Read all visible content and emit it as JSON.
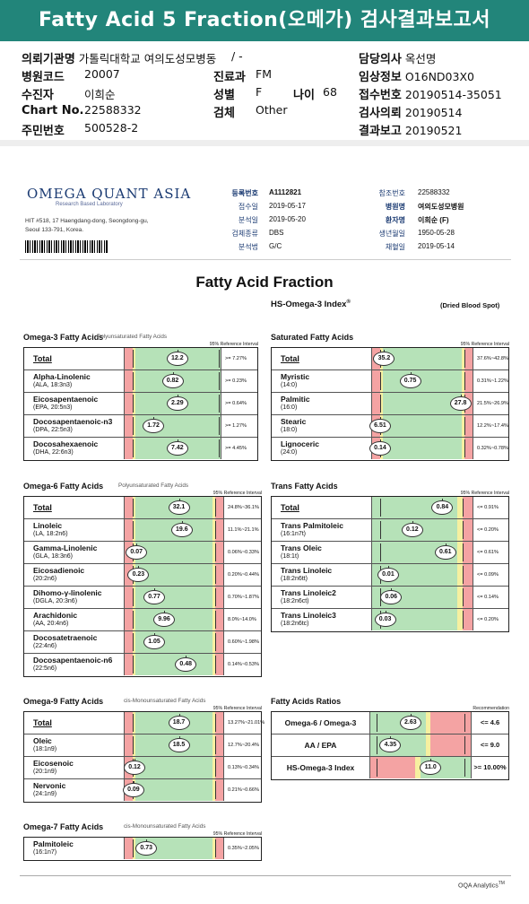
{
  "title": "Fatty Acid 5 Fraction(오메가) 검사결과보고서",
  "info": {
    "institution_label": "의뢰기관명",
    "institution_value": "가톨릭대학교 여의도성모병동",
    "physician_label": "담당의사",
    "physician_value": "옥선명",
    "dash": "/  -",
    "hospital_code_label": "병원코드",
    "hospital_code_value": "20007",
    "dept_label": "진료과",
    "dept_value": "FM",
    "clinical_label": "임상정보",
    "clinical_value": "O16ND03X0",
    "examinee_label": "수진자",
    "examinee_value": "이희순",
    "sex_label": "성별",
    "sex_value": "F",
    "age_label": "나이",
    "age_value": "68",
    "receipt_label": "접수번호",
    "receipt_value": "20190514-35051",
    "chart_label": "Chart No.",
    "chart_value": "22588332",
    "test_label": "검체",
    "test_value": "Other",
    "request_label": "검사의뢰",
    "request_value": "20190514",
    "rrn_label": "주민번호",
    "rrn_value": "500528-2",
    "report_label": "결과보고",
    "report_value": "20190521"
  },
  "lab": {
    "logo": "OMEGA QUANT ASIA",
    "logo_sub": "Research Based Laboratory",
    "addr1": "HIT #518, 17 Haengdang-dong, Seongdong-gu,",
    "addr2": "Seoul 133-791, Korea."
  },
  "meta": {
    "reg_label": "등록번호",
    "reg_value": "A1112821",
    "ref_label": "참조번호",
    "ref_value": "22588332",
    "recv_label": "접수일",
    "recv_value": "2019-05-17",
    "hosp_label": "병원명",
    "hosp_value": "여의도성모병원",
    "analysis_label": "분석일",
    "analysis_value": "2019-05-20",
    "patient_label": "환자명",
    "patient_value": "이희순 (F)",
    "sample_label": "검체종류",
    "sample_value": "DBS",
    "dob_label": "생년월일",
    "dob_value": "1950-05-28",
    "method_label": "분석법",
    "method_value": "G/C",
    "collect_label": "채혈일",
    "collect_value": "2019-05-14"
  },
  "main_title": "Fatty Acid Fraction",
  "hs_title": "HS-Omega-3 Index",
  "hs_sup": "®",
  "dbs_note": "(Dried Blood Spot)",
  "ref_interval_label": "95% Reference Interval",
  "recommendation_label": "Recommendation",
  "colors": {
    "red": "#f4a3a3",
    "green": "#b6e2b8",
    "yellow": "#f6f0a0"
  },
  "sections": {
    "omega3": {
      "title": "Omega-3 Fatty Acids",
      "subtitle": "Polyunsaturated Fatty Acids",
      "rows": [
        {
          "name": "Total",
          "sub": "",
          "value": "12.2",
          "ref": ">= 7.27%",
          "pos": 0.55,
          "total": true
        },
        {
          "name": "Alpha-Linolenic",
          "sub": "(ALA, 18:3n3)",
          "value": "0.82",
          "ref": ">= 0.23%",
          "pos": 0.5
        },
        {
          "name": "Eicosapentaenoic",
          "sub": "(EPA, 20:5n3)",
          "value": "2.29",
          "ref": ">= 0.64%",
          "pos": 0.55
        },
        {
          "name": "Docosapentaenoic-n3",
          "sub": "(DPA, 22:5n3)",
          "value": "1.72",
          "ref": ">= 1.27%",
          "pos": 0.3
        },
        {
          "name": "Docosahexaenoic",
          "sub": "(DHA, 22:6n3)",
          "value": "7.42",
          "ref": ">= 4.45%",
          "pos": 0.55
        }
      ]
    },
    "saturated": {
      "title": "Saturated Fatty Acids",
      "rows": [
        {
          "name": "Total",
          "sub": "",
          "value": "35.2",
          "ref": "37.6%~42.8%",
          "pos": 0.12,
          "total": true
        },
        {
          "name": "Myristic",
          "sub": "(14:0)",
          "value": "0.75",
          "ref": "0.31%~1.22%",
          "pos": 0.38
        },
        {
          "name": "Palmitic",
          "sub": "(16:0)",
          "value": "27.8",
          "ref": "21.5%~26.9%",
          "pos": 0.88
        },
        {
          "name": "Stearic",
          "sub": "(18:0)",
          "value": "6.51",
          "ref": "12.2%~17.4%",
          "pos": 0.08
        },
        {
          "name": "Lignoceric",
          "sub": "(24:0)",
          "value": "0.14",
          "ref": "0.32%~0.78%",
          "pos": 0.08
        }
      ]
    },
    "omega6": {
      "title": "Omega-6 Fatty Acids",
      "subtitle": "Polyunsaturated Fatty Acids",
      "rows": [
        {
          "name": "Total",
          "sub": "",
          "value": "32.1",
          "ref": "24.8%~36.1%",
          "pos": 0.55,
          "total": true
        },
        {
          "name": "Linoleic",
          "sub": "(LA, 18:2n6)",
          "value": "19.6",
          "ref": "11.1%~21.1%",
          "pos": 0.58
        },
        {
          "name": "Gamma-Linolenic",
          "sub": "(GLA, 18:3n6)",
          "value": "0.07",
          "ref": "0.06%~0.33%",
          "pos": 0.12
        },
        {
          "name": "Eicosadienoic",
          "sub": "(20:2n6)",
          "value": "0.23",
          "ref": "0.20%~0.44%",
          "pos": 0.14
        },
        {
          "name": "Dihomo-γ-linolenic",
          "sub": "(DGLA, 20:3n6)",
          "value": "0.77",
          "ref": "0.70%~1.87%",
          "pos": 0.3
        },
        {
          "name": "Arachidonic",
          "sub": "(AA, 20:4n6)",
          "value": "9.96",
          "ref": "8.0%~14.0%",
          "pos": 0.4
        },
        {
          "name": "Docosatetraenoic",
          "sub": "(22:4n6)",
          "value": "1.05",
          "ref": "0.60%~1.98%",
          "pos": 0.3
        },
        {
          "name": "Docosapentaenoic-n6",
          "sub": "(22:5n6)",
          "value": "0.48",
          "ref": "0.14%~0.53%",
          "pos": 0.62
        }
      ]
    },
    "trans": {
      "title": "Trans Fatty Acids",
      "rows": [
        {
          "name": "Total",
          "sub": "",
          "value": "0.84",
          "ref": "<= 0.91%",
          "pos": 0.7,
          "total": true
        },
        {
          "name": "Trans Palmitoleic",
          "sub": "(16:1n7t)",
          "value": "0.12",
          "ref": "<= 0.20%",
          "pos": 0.4
        },
        {
          "name": "Trans Oleic",
          "sub": "(18:1t)",
          "value": "0.61",
          "ref": "<= 0.61%",
          "pos": 0.73
        },
        {
          "name": "Trans Linoleic",
          "sub": "(18:2n6tt)",
          "value": "0.01",
          "ref": "<= 0.09%",
          "pos": 0.16
        },
        {
          "name": "Trans Linoleic2",
          "sub": "(18:2n6ct)",
          "value": "0.06",
          "ref": "<= 0.14%",
          "pos": 0.19
        },
        {
          "name": "Trans Linoleic3",
          "sub": "(18:2n6tc)",
          "value": "0.03",
          "ref": "<= 0.20%",
          "pos": 0.13
        }
      ]
    },
    "omega9": {
      "title": "Omega-9 Fatty Acids",
      "subtitle": "cis-Monounsaturated Fatty Acids",
      "rows": [
        {
          "name": "Total",
          "sub": "",
          "value": "18.7",
          "ref": "13.27%~21.01%",
          "pos": 0.55,
          "total": true
        },
        {
          "name": "Oleic",
          "sub": "(18:1n9)",
          "value": "18.5",
          "ref": "12.7%~20.4%",
          "pos": 0.55
        },
        {
          "name": "Eicosenoic",
          "sub": "(20:1n9)",
          "value": "0.12",
          "ref": "0.13%~0.34%",
          "pos": 0.1
        },
        {
          "name": "Nervonic",
          "sub": "(24:1n9)",
          "value": "0.09",
          "ref": "0.21%~0.66%",
          "pos": 0.09
        }
      ]
    },
    "ratios": {
      "title": "Fatty Acids Ratios",
      "rows": [
        {
          "name": "Omega-6 / Omega-3",
          "value": "2.63",
          "ref": "<= 4.6",
          "pos": 0.4,
          "type": "gr"
        },
        {
          "name": "AA / EPA",
          "value": "4.35",
          "ref": "<= 9.0",
          "pos": 0.2,
          "type": "gr"
        },
        {
          "name": "HS-Omega-3 Index",
          "value": "11.0",
          "ref": ">= 10.00%",
          "pos": 0.6,
          "type": "rg"
        }
      ]
    },
    "omega7": {
      "title": "Omega-7 Fatty Acids",
      "subtitle": "cis-Monounsaturated Fatty Acids",
      "rows": [
        {
          "name": "Palmitoleic",
          "sub": "(16:1n7)",
          "value": "0.73",
          "ref": "0.35%~2.05%",
          "pos": 0.22
        }
      ]
    }
  },
  "footer": "OQA Analytics",
  "footer_tm": "TM"
}
